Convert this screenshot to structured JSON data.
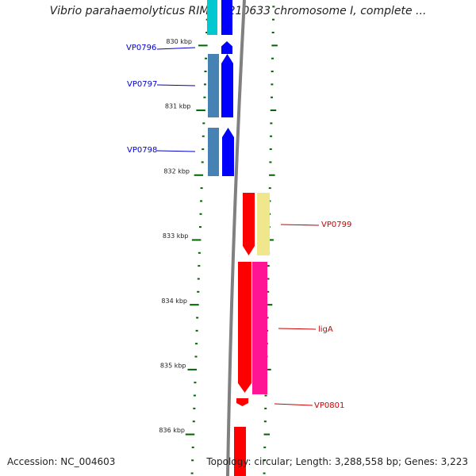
{
  "header": {
    "title": "Vibrio parahaemolyticus RIMD 2210633 chromosome I, complete ..."
  },
  "map": {
    "scale_labels": [
      "830 kbp",
      "831 kbp",
      "832 kbp",
      "833 kbp",
      "834 kbp",
      "835 kbp",
      "836 kbp"
    ],
    "colors": {
      "forward_gene": "#0000ff",
      "forward_feature": "#4682b4",
      "reverse_gene": "#ff0000",
      "reverse_feature_a": "#f0e68c",
      "reverse_feature_b": "#ff1493",
      "cyan_feature": "#00c8d0",
      "backbone": "#808080",
      "tick": "#006400",
      "forward_label": "#0000cc",
      "reverse_label": "#cc0000"
    },
    "genes": [
      {
        "id": "VP0796",
        "label": "VP0796",
        "strand": "forward"
      },
      {
        "id": "VP0797",
        "label": "VP0797",
        "strand": "forward"
      },
      {
        "id": "VP0798",
        "label": "VP0798",
        "strand": "forward"
      },
      {
        "id": "VP0799",
        "label": "VP0799",
        "strand": "reverse"
      },
      {
        "id": "ligA",
        "label": "ligA",
        "strand": "reverse"
      },
      {
        "id": "VP0801",
        "label": "VP0801",
        "strand": "reverse"
      }
    ]
  },
  "footer": {
    "accession": "Accession: NC_004603",
    "summary": "Topology: circular; Length: 3,288,558 bp; Genes: 3,223"
  }
}
